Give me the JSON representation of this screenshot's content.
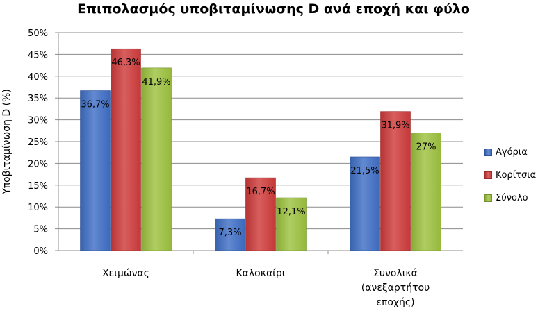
{
  "chart_data": {
    "type": "bar",
    "title": "Επιπολασμός υποβιταμίνωσης D ανά εποχή και φύλο",
    "ylabel": "Υποβιταμίνωση D (%)",
    "xlabel": "",
    "ylim": [
      0,
      50
    ],
    "yticks": [
      "0%",
      "5%",
      "10%",
      "15%",
      "20%",
      "25%",
      "30%",
      "35%",
      "40%",
      "45%",
      "50%"
    ],
    "grid": true,
    "legend_position": "right",
    "categories": [
      [
        "Χειμώνας"
      ],
      [
        "Καλοκαίρι"
      ],
      [
        "Συνολικά",
        "(ανεξαρτήτου",
        "εποχής)"
      ]
    ],
    "series": [
      {
        "name": "Αγόρια",
        "values": [
          36.7,
          7.3,
          21.5
        ],
        "labels": [
          "36,7%",
          "7,3%",
          "21,5%"
        ],
        "color": "#3f6fc6"
      },
      {
        "name": "Κορίτσια",
        "values": [
          46.3,
          16.7,
          31.9
        ],
        "labels": [
          "46,3%",
          "16,7%",
          "31,9%"
        ],
        "color": "#cf3b3b"
      },
      {
        "name": "Σύνολο",
        "values": [
          41.9,
          12.1,
          27
        ],
        "labels": [
          "41,9%",
          "12,1%",
          "27%"
        ],
        "color": "#9dc23f"
      }
    ]
  }
}
